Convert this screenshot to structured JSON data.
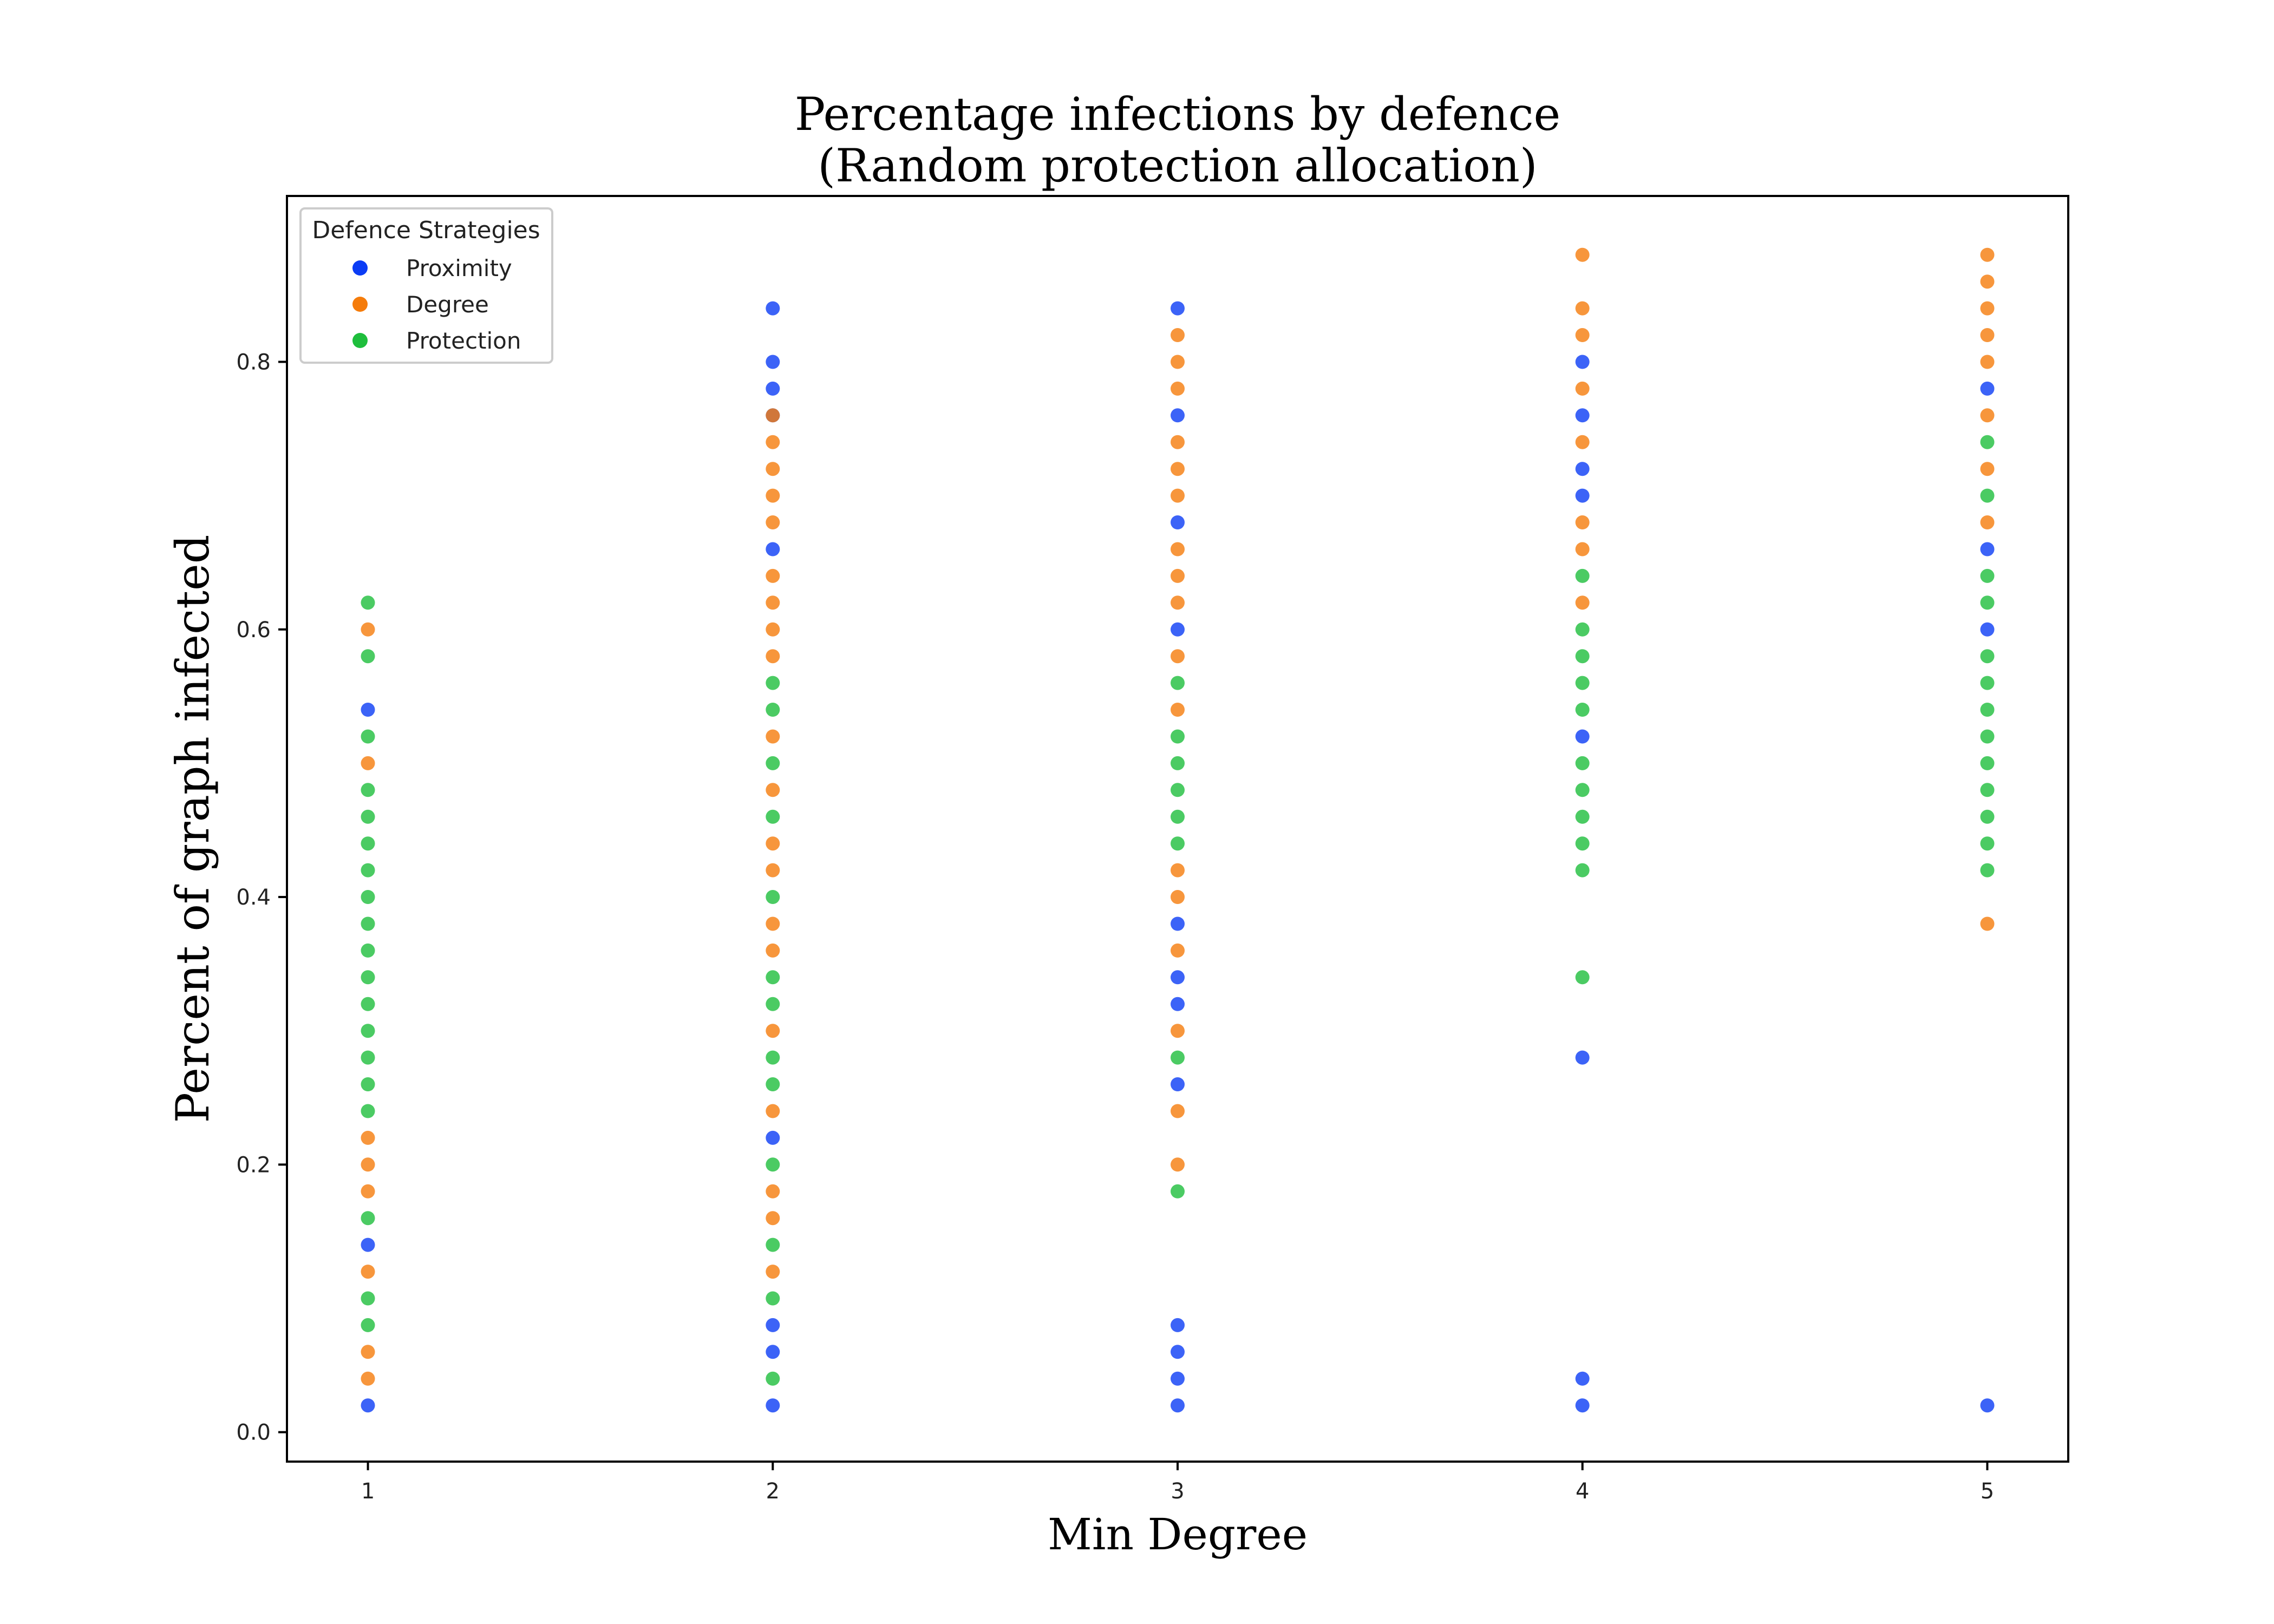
{
  "chart_data": {
    "type": "scatter",
    "title": [
      "Percentage infections by defence",
      "(Random protection allocation)"
    ],
    "xlabel": "Min Degree",
    "ylabel": "Percent of graph infected",
    "x_ticks": [
      1,
      2,
      3,
      4,
      5
    ],
    "y_ticks": [
      "0.0",
      "0.2",
      "0.4",
      "0.6",
      "0.8"
    ],
    "xlim": [
      0.8,
      5.2
    ],
    "ylim": [
      -0.022,
      0.924
    ],
    "grid": false,
    "legend": {
      "title": "Defence Strategies",
      "placement": "top-left",
      "entries": [
        {
          "name": "Proximity",
          "color": "#0b3cf5"
        },
        {
          "name": "Degree",
          "color": "#f57c0b"
        },
        {
          "name": "Protection",
          "color": "#1ebe3c"
        }
      ]
    },
    "series": [
      {
        "name": "Proximity",
        "color": "#0b3cf5",
        "points": [
          {
            "x": 1,
            "y": 0.02
          },
          {
            "x": 1,
            "y": 0.14
          },
          {
            "x": 1,
            "y": 0.54
          },
          {
            "x": 2,
            "y": 0.02
          },
          {
            "x": 2,
            "y": 0.06
          },
          {
            "x": 2,
            "y": 0.08
          },
          {
            "x": 2,
            "y": 0.22
          },
          {
            "x": 2,
            "y": 0.66
          },
          {
            "x": 2,
            "y": 0.76
          },
          {
            "x": 2,
            "y": 0.78
          },
          {
            "x": 2,
            "y": 0.8
          },
          {
            "x": 2,
            "y": 0.84
          },
          {
            "x": 3,
            "y": 0.02
          },
          {
            "x": 3,
            "y": 0.04
          },
          {
            "x": 3,
            "y": 0.06
          },
          {
            "x": 3,
            "y": 0.08
          },
          {
            "x": 3,
            "y": 0.26
          },
          {
            "x": 3,
            "y": 0.32
          },
          {
            "x": 3,
            "y": 0.34
          },
          {
            "x": 3,
            "y": 0.38
          },
          {
            "x": 3,
            "y": 0.6
          },
          {
            "x": 3,
            "y": 0.68
          },
          {
            "x": 3,
            "y": 0.76
          },
          {
            "x": 3,
            "y": 0.84
          },
          {
            "x": 4,
            "y": 0.02
          },
          {
            "x": 4,
            "y": 0.04
          },
          {
            "x": 4,
            "y": 0.28
          },
          {
            "x": 4,
            "y": 0.52
          },
          {
            "x": 4,
            "y": 0.7
          },
          {
            "x": 4,
            "y": 0.72
          },
          {
            "x": 4,
            "y": 0.76
          },
          {
            "x": 4,
            "y": 0.8
          },
          {
            "x": 5,
            "y": 0.02
          },
          {
            "x": 5,
            "y": 0.6
          },
          {
            "x": 5,
            "y": 0.66
          },
          {
            "x": 5,
            "y": 0.78
          }
        ]
      },
      {
        "name": "Degree",
        "color": "#f57c0b",
        "points": [
          {
            "x": 1,
            "y": 0.04
          },
          {
            "x": 1,
            "y": 0.06
          },
          {
            "x": 1,
            "y": 0.12
          },
          {
            "x": 1,
            "y": 0.18
          },
          {
            "x": 1,
            "y": 0.2
          },
          {
            "x": 1,
            "y": 0.22
          },
          {
            "x": 1,
            "y": 0.5
          },
          {
            "x": 1,
            "y": 0.6
          },
          {
            "x": 2,
            "y": 0.12
          },
          {
            "x": 2,
            "y": 0.16
          },
          {
            "x": 2,
            "y": 0.18
          },
          {
            "x": 2,
            "y": 0.24
          },
          {
            "x": 2,
            "y": 0.3
          },
          {
            "x": 2,
            "y": 0.36
          },
          {
            "x": 2,
            "y": 0.38
          },
          {
            "x": 2,
            "y": 0.42
          },
          {
            "x": 2,
            "y": 0.44
          },
          {
            "x": 2,
            "y": 0.48
          },
          {
            "x": 2,
            "y": 0.52
          },
          {
            "x": 2,
            "y": 0.58
          },
          {
            "x": 2,
            "y": 0.6
          },
          {
            "x": 2,
            "y": 0.62
          },
          {
            "x": 2,
            "y": 0.64
          },
          {
            "x": 2,
            "y": 0.68
          },
          {
            "x": 2,
            "y": 0.7
          },
          {
            "x": 2,
            "y": 0.72
          },
          {
            "x": 2,
            "y": 0.74
          },
          {
            "x": 2,
            "y": 0.76
          },
          {
            "x": 3,
            "y": 0.2
          },
          {
            "x": 3,
            "y": 0.24
          },
          {
            "x": 3,
            "y": 0.3
          },
          {
            "x": 3,
            "y": 0.36
          },
          {
            "x": 3,
            "y": 0.4
          },
          {
            "x": 3,
            "y": 0.42
          },
          {
            "x": 3,
            "y": 0.54
          },
          {
            "x": 3,
            "y": 0.58
          },
          {
            "x": 3,
            "y": 0.62
          },
          {
            "x": 3,
            "y": 0.64
          },
          {
            "x": 3,
            "y": 0.66
          },
          {
            "x": 3,
            "y": 0.7
          },
          {
            "x": 3,
            "y": 0.72
          },
          {
            "x": 3,
            "y": 0.74
          },
          {
            "x": 3,
            "y": 0.78
          },
          {
            "x": 3,
            "y": 0.8
          },
          {
            "x": 3,
            "y": 0.82
          },
          {
            "x": 4,
            "y": 0.62
          },
          {
            "x": 4,
            "y": 0.66
          },
          {
            "x": 4,
            "y": 0.68
          },
          {
            "x": 4,
            "y": 0.74
          },
          {
            "x": 4,
            "y": 0.78
          },
          {
            "x": 4,
            "y": 0.82
          },
          {
            "x": 4,
            "y": 0.84
          },
          {
            "x": 4,
            "y": 0.88
          },
          {
            "x": 5,
            "y": 0.38
          },
          {
            "x": 5,
            "y": 0.68
          },
          {
            "x": 5,
            "y": 0.72
          },
          {
            "x": 5,
            "y": 0.76
          },
          {
            "x": 5,
            "y": 0.8
          },
          {
            "x": 5,
            "y": 0.82
          },
          {
            "x": 5,
            "y": 0.84
          },
          {
            "x": 5,
            "y": 0.86
          },
          {
            "x": 5,
            "y": 0.88
          }
        ]
      },
      {
        "name": "Protection",
        "color": "#1ebe3c",
        "points": [
          {
            "x": 1,
            "y": 0.08
          },
          {
            "x": 1,
            "y": 0.1
          },
          {
            "x": 1,
            "y": 0.16
          },
          {
            "x": 1,
            "y": 0.24
          },
          {
            "x": 1,
            "y": 0.26
          },
          {
            "x": 1,
            "y": 0.28
          },
          {
            "x": 1,
            "y": 0.3
          },
          {
            "x": 1,
            "y": 0.32
          },
          {
            "x": 1,
            "y": 0.34
          },
          {
            "x": 1,
            "y": 0.36
          },
          {
            "x": 1,
            "y": 0.38
          },
          {
            "x": 1,
            "y": 0.4
          },
          {
            "x": 1,
            "y": 0.42
          },
          {
            "x": 1,
            "y": 0.44
          },
          {
            "x": 1,
            "y": 0.46
          },
          {
            "x": 1,
            "y": 0.48
          },
          {
            "x": 1,
            "y": 0.52
          },
          {
            "x": 1,
            "y": 0.58
          },
          {
            "x": 1,
            "y": 0.62
          },
          {
            "x": 2,
            "y": 0.04
          },
          {
            "x": 2,
            "y": 0.1
          },
          {
            "x": 2,
            "y": 0.14
          },
          {
            "x": 2,
            "y": 0.2
          },
          {
            "x": 2,
            "y": 0.26
          },
          {
            "x": 2,
            "y": 0.28
          },
          {
            "x": 2,
            "y": 0.32
          },
          {
            "x": 2,
            "y": 0.34
          },
          {
            "x": 2,
            "y": 0.4
          },
          {
            "x": 2,
            "y": 0.46
          },
          {
            "x": 2,
            "y": 0.5
          },
          {
            "x": 2,
            "y": 0.54
          },
          {
            "x": 2,
            "y": 0.56
          },
          {
            "x": 3,
            "y": 0.18
          },
          {
            "x": 3,
            "y": 0.28
          },
          {
            "x": 3,
            "y": 0.44
          },
          {
            "x": 3,
            "y": 0.46
          },
          {
            "x": 3,
            "y": 0.48
          },
          {
            "x": 3,
            "y": 0.5
          },
          {
            "x": 3,
            "y": 0.52
          },
          {
            "x": 3,
            "y": 0.56
          },
          {
            "x": 4,
            "y": 0.34
          },
          {
            "x": 4,
            "y": 0.42
          },
          {
            "x": 4,
            "y": 0.44
          },
          {
            "x": 4,
            "y": 0.46
          },
          {
            "x": 4,
            "y": 0.48
          },
          {
            "x": 4,
            "y": 0.5
          },
          {
            "x": 4,
            "y": 0.54
          },
          {
            "x": 4,
            "y": 0.56
          },
          {
            "x": 4,
            "y": 0.58
          },
          {
            "x": 4,
            "y": 0.6
          },
          {
            "x": 4,
            "y": 0.64
          },
          {
            "x": 5,
            "y": 0.42
          },
          {
            "x": 5,
            "y": 0.44
          },
          {
            "x": 5,
            "y": 0.46
          },
          {
            "x": 5,
            "y": 0.48
          },
          {
            "x": 5,
            "y": 0.5
          },
          {
            "x": 5,
            "y": 0.52
          },
          {
            "x": 5,
            "y": 0.54
          },
          {
            "x": 5,
            "y": 0.56
          },
          {
            "x": 5,
            "y": 0.58
          },
          {
            "x": 5,
            "y": 0.62
          },
          {
            "x": 5,
            "y": 0.64
          },
          {
            "x": 5,
            "y": 0.7
          },
          {
            "x": 5,
            "y": 0.74
          }
        ]
      }
    ]
  }
}
